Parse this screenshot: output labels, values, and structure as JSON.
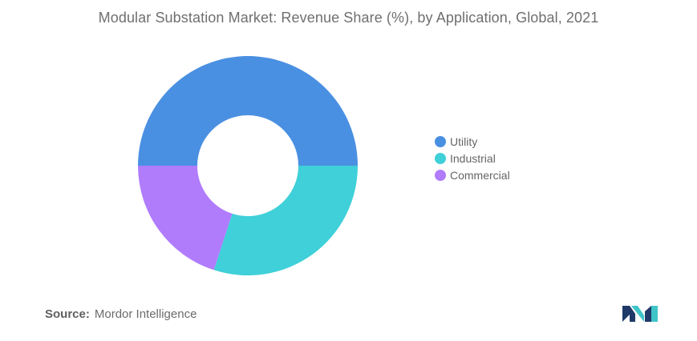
{
  "title": "Modular Substation Market: Revenue Share (%), by Application, Global, 2021",
  "chart_data": {
    "type": "pie",
    "donut": true,
    "title": "Modular Substation Market: Revenue Share (%), by Application, Global, 2021",
    "categories": [
      "Utility",
      "Industrial",
      "Commercial"
    ],
    "values": [
      50,
      30,
      20
    ],
    "colors": [
      "#4a90e2",
      "#3fd0d9",
      "#b07cfc"
    ],
    "legend_position": "right",
    "start_angle": "left (9 o'clock)",
    "direction": "clockwise"
  },
  "source": {
    "label": "Source:",
    "value": "Mordor Intelligence"
  },
  "logo": {
    "icon": "mordor-intelligence-logo-icon",
    "colors": [
      "#1f3a68",
      "#3fc4c8"
    ]
  }
}
